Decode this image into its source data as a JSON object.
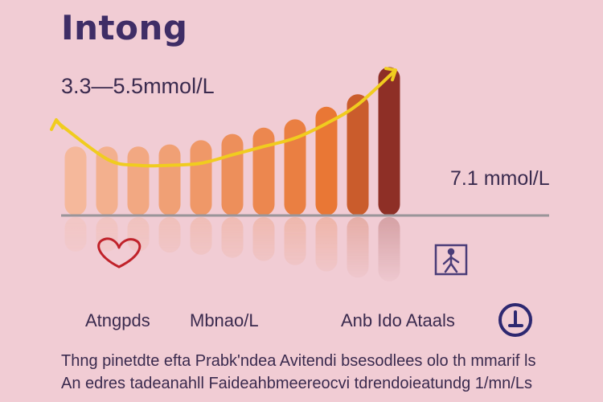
{
  "page": {
    "title": "Intong",
    "range_label": "3.3—5.5mmol/L",
    "value_label": "7.1 mmol/L"
  },
  "legend": {
    "item1": "Atngpds",
    "item2": "Mbnao/L",
    "item3": "Anb Ido Ataals"
  },
  "footer": {
    "line1": "Thng pinetdte efta Prabk'ndea Avitendi bsesodlees olo th mmarif ls",
    "line2": "An edres tadeanahll Faideahbmeereocvi tdrendoieatundg 1/mn/Ls"
  },
  "colors": {
    "background": "#f1ccd4",
    "title": "#3f2d66",
    "curve": "#f0cc1f",
    "bar_light": "#f5b89b",
    "bar_dark": "#8e2f26",
    "baseline": "#9a9599",
    "heart_icon": "#c0222a",
    "figure_icon": "#4a3c78",
    "clock_icon": "#2e2870"
  },
  "icons": [
    "heart-icon",
    "person-figure-icon",
    "clock-icon"
  ],
  "chart_data": {
    "type": "bar",
    "title": "Intong",
    "bar_count": 11,
    "values": [
      3.3,
      3.3,
      3.3,
      3.4,
      3.6,
      3.9,
      4.2,
      4.6,
      5.2,
      5.8,
      7.1
    ],
    "ylim": [
      0,
      8
    ],
    "annotations": [
      "3.3—5.5mmol/L",
      "7.1 mmol/L"
    ],
    "trend_line": {
      "x": [
        0,
        1,
        2,
        3,
        4,
        5,
        6,
        7,
        8,
        9,
        10
      ],
      "y": [
        4.5,
        2.7,
        2.4,
        2.4,
        2.5,
        2.9,
        3.3,
        3.7,
        4.4,
        5.3,
        6.8
      ]
    },
    "grid": false,
    "legend": [
      "Atngpds",
      "Mbnao/L",
      "Anb Ido Ataals"
    ]
  }
}
